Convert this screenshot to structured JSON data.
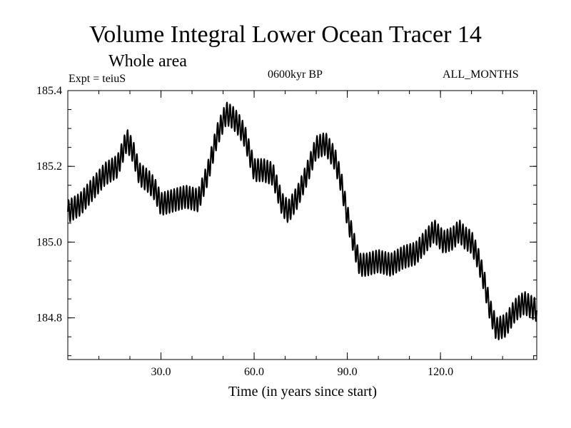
{
  "chart_data": {
    "type": "line",
    "title": "Volume Integral Lower Ocean Tracer 14",
    "subtitle": "Whole area",
    "annotations": {
      "experiment": "Expt = teiuS",
      "period": "0600kyr BP",
      "months": "ALL_MONTHS"
    },
    "xlabel": "Time (in years since start)",
    "ylabel": "",
    "xlim": [
      0,
      151
    ],
    "ylim": [
      184.69,
      185.4
    ],
    "xticks": [
      30,
      60,
      90,
      120
    ],
    "xtick_labels": [
      "30.0",
      "60.0",
      "90.0",
      "120.0"
    ],
    "yticks": [
      184.8,
      185.0,
      185.2,
      185.4
    ],
    "ytick_labels": [
      "184.8",
      "185.0",
      "185.2",
      "185.4"
    ],
    "grid": false,
    "series": [
      {
        "name": "Lower Ocean Tracer 14",
        "color": "#000000",
        "cycle_amplitude": 0.03,
        "cycle_period_years": 1,
        "trend": {
          "x": [
            0,
            4,
            8,
            12,
            16,
            19,
            21,
            23,
            26,
            28,
            30,
            34,
            38,
            42,
            45,
            48,
            51,
            53,
            55,
            57,
            60,
            63,
            66,
            69,
            71,
            74,
            77,
            80,
            83,
            86,
            88,
            90,
            92,
            94,
            96,
            100,
            104,
            108,
            112,
            114,
            116,
            118,
            121,
            124,
            126,
            128,
            130,
            132,
            134,
            136,
            138,
            141,
            144,
            147,
            151
          ],
          "y": [
            185.08,
            185.1,
            185.14,
            185.18,
            185.2,
            185.27,
            185.24,
            185.18,
            185.16,
            185.14,
            185.1,
            185.11,
            185.12,
            185.11,
            185.18,
            185.28,
            185.34,
            185.33,
            185.31,
            185.28,
            185.19,
            185.19,
            185.18,
            185.1,
            185.08,
            185.12,
            185.18,
            185.25,
            185.26,
            185.22,
            185.16,
            185.07,
            185.0,
            184.94,
            184.94,
            184.95,
            184.94,
            184.96,
            184.97,
            184.99,
            185.01,
            185.03,
            185.0,
            185.01,
            185.03,
            185.01,
            185.0,
            184.96,
            184.9,
            184.82,
            184.77,
            184.78,
            184.82,
            184.84,
            184.82
          ]
        }
      }
    ]
  }
}
